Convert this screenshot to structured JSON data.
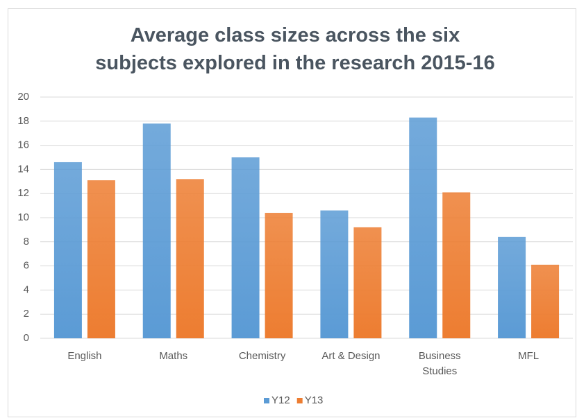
{
  "chart_data": {
    "type": "bar",
    "title": "Average class sizes across the six subjects explored in the research 2015-16",
    "categories": [
      "English",
      "Maths",
      "Chemistry",
      "Art & Design",
      "Business Studies",
      "MFL"
    ],
    "series": [
      {
        "name": "Y12",
        "color": "#5b9bd5",
        "values": [
          14.6,
          17.8,
          15.0,
          10.6,
          18.3,
          8.4
        ]
      },
      {
        "name": "Y13",
        "color": "#ed7d31",
        "values": [
          13.1,
          13.2,
          10.4,
          9.2,
          12.1,
          6.1
        ]
      }
    ],
    "ylim": [
      0,
      20
    ],
    "yticks": [
      0,
      2,
      4,
      6,
      8,
      10,
      12,
      14,
      16,
      18,
      20
    ],
    "grid": true,
    "legend": "bottom"
  }
}
